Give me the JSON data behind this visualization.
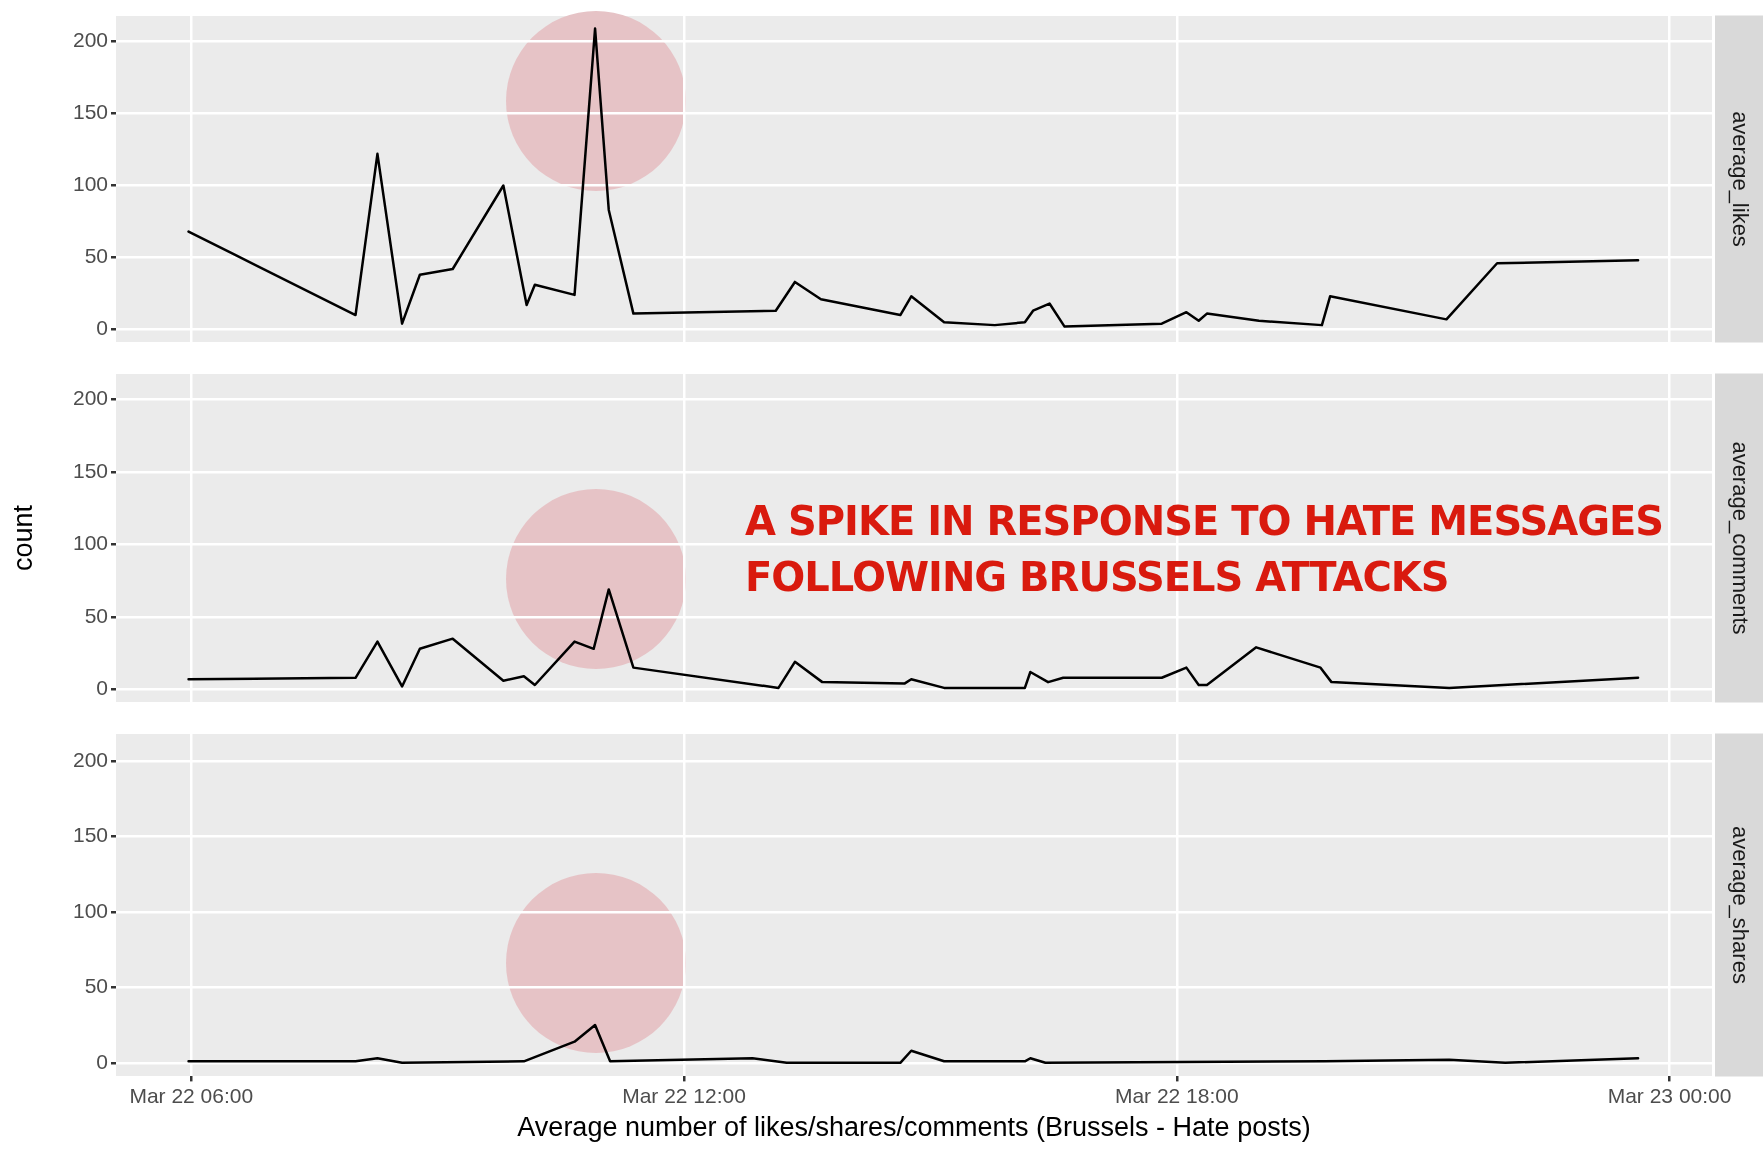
{
  "chart_data": [
    {
      "type": "line",
      "xlim": [
        "--03-22T05:05",
        "--03-23T00:31"
      ],
      "ylim": [
        -9,
        218
      ],
      "yticks": [
        0,
        50,
        100,
        150,
        200
      ],
      "xticks": [
        {
          "value": "--03-22T06:00",
          "label": null
        },
        {
          "value": "--03-22T12:00",
          "label": null
        },
        {
          "value": "--03-22T18:00",
          "label": null
        },
        {
          "value": "--03-23T00:00",
          "label": null
        }
      ],
      "tick_labels": "y",
      "grid": true,
      "marker": "none",
      "line_style": "solid",
      "series": [
        {
          "name": "average_likes",
          "color": "#000000",
          "x": [
            "--03-22T05:58",
            "--03-22T08:00",
            "--03-22T08:16",
            "--03-22T08:34",
            "--03-22T08:47",
            "--03-22T09:11",
            "--03-22T09:48",
            "--03-22T10:05",
            "--03-22T10:11",
            "--03-22T10:40",
            "--03-22T10:55",
            "--03-22T11:05",
            "--03-22T11:23",
            "--03-22T13:07",
            "--03-22T13:21",
            "--03-22T13:40",
            "--03-22T14:38",
            "--03-22T14:46",
            "--03-22T15:10",
            "--03-22T15:47",
            "--03-22T16:09",
            "--03-22T16:15",
            "--03-22T16:27",
            "--03-22T16:38",
            "--03-22T17:49",
            "--03-22T18:07",
            "--03-22T18:16",
            "--03-22T18:22",
            "--03-22T19:00",
            "--03-22T19:46",
            "--03-22T19:52",
            "--03-22T21:17",
            "--03-22T21:54",
            "--03-22T23:37"
          ],
          "values": [
            68,
            10,
            122,
            4,
            38,
            42,
            100,
            17,
            31,
            24,
            209,
            83,
            11,
            13,
            33,
            21,
            10,
            23,
            5,
            3,
            5,
            13,
            18,
            2,
            4,
            12,
            6,
            11,
            6,
            3,
            23,
            7,
            46,
            48
          ]
        }
      ]
    },
    {
      "type": "line",
      "ylabel": "count",
      "annotations": [
        "A SPIKE IN RESPONSE TO HATE MESSAGES FOLLOWING BRUSSELS ATTACKS"
      ],
      "xlim": [
        "--03-22T05:05",
        "--03-23T00:31"
      ],
      "ylim": [
        -9,
        218
      ],
      "yticks": [
        0,
        50,
        100,
        150,
        200
      ],
      "xticks": [
        {
          "value": "--03-22T06:00",
          "label": null
        },
        {
          "value": "--03-22T12:00",
          "label": null
        },
        {
          "value": "--03-22T18:00",
          "label": null
        },
        {
          "value": "--03-23T00:00",
          "label": null
        }
      ],
      "tick_labels": "y",
      "grid": true,
      "marker": "none",
      "line_style": "solid",
      "series": [
        {
          "name": "average_comments",
          "color": "#000000",
          "x": [
            "--03-22T05:58",
            "--03-22T08:00",
            "--03-22T08:16",
            "--03-22T08:34",
            "--03-22T08:47",
            "--03-22T09:11",
            "--03-22T09:48",
            "--03-22T10:03",
            "--03-22T10:11",
            "--03-22T10:40",
            "--03-22T10:54",
            "--03-22T11:05",
            "--03-22T11:23",
            "--03-22T13:09",
            "--03-22T13:21",
            "--03-22T13:41",
            "--03-22T14:41",
            "--03-22T14:46",
            "--03-22T15:10",
            "--03-22T16:09",
            "--03-22T16:13",
            "--03-22T16:26",
            "--03-22T16:37",
            "--03-22T17:49",
            "--03-22T18:07",
            "--03-22T18:16",
            "--03-22T18:22",
            "--03-22T18:58",
            "--03-22T19:45",
            "--03-22T19:53",
            "--03-22T21:19",
            "--03-22T23:37"
          ],
          "values": [
            7,
            8,
            33,
            2,
            28,
            35,
            6,
            9,
            3,
            33,
            28,
            69,
            15,
            1,
            19,
            5,
            4,
            7,
            1,
            1,
            12,
            5,
            8,
            8,
            15,
            3,
            3,
            29,
            15,
            5,
            1,
            8
          ]
        }
      ]
    },
    {
      "type": "line",
      "xlabel": "Average number of likes/shares/comments (Brussels - Hate posts)",
      "xlim": [
        "--03-22T05:05",
        "--03-23T00:31"
      ],
      "ylim": [
        -9,
        218
      ],
      "yticks": [
        0,
        50,
        100,
        150,
        200
      ],
      "xticks": [
        {
          "value": "--03-22T06:00",
          "label": "Mar 22 06:00"
        },
        {
          "value": "--03-22T12:00",
          "label": "Mar 22 12:00"
        },
        {
          "value": "--03-22T18:00",
          "label": "Mar 22 18:00"
        },
        {
          "value": "--03-23T00:00",
          "label": "Mar 23 00:00"
        }
      ],
      "grid": true,
      "marker": "none",
      "line_style": "solid",
      "series": [
        {
          "name": "average_shares",
          "color": "#000000",
          "x": [
            "--03-22T05:58",
            "--03-22T08:00",
            "--03-22T08:16",
            "--03-22T08:34",
            "--03-22T10:03",
            "--03-22T10:40",
            "--03-22T10:55",
            "--03-22T11:06",
            "--03-22T12:50",
            "--03-22T13:15",
            "--03-22T14:38",
            "--03-22T14:46",
            "--03-22T15:10",
            "--03-22T16:09",
            "--03-22T16:13",
            "--03-22T16:24",
            "--03-22T19:48",
            "--03-22T21:19",
            "--03-22T22:00",
            "--03-22T23:37"
          ],
          "values": [
            1,
            1,
            3,
            0,
            1,
            14,
            25,
            1,
            3,
            0,
            0,
            8,
            1,
            1,
            3,
            0,
            1,
            2,
            0,
            3
          ]
        }
      ]
    }
  ]
}
